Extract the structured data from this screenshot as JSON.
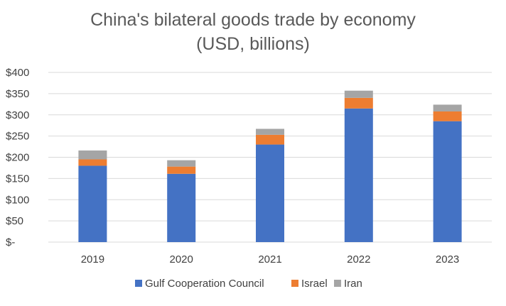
{
  "chart_data": {
    "type": "bar",
    "stacked": true,
    "title": "China's bilateral goods trade by economy",
    "subtitle": "(USD, billions)",
    "categories": [
      "2019",
      "2020",
      "2021",
      "2022",
      "2023"
    ],
    "series": [
      {
        "name": "Gulf Cooperation Council",
        "color": "#4472C4",
        "values": [
          180,
          161,
          230,
          315,
          285
        ]
      },
      {
        "name": "Israel",
        "color": "#ED7D31",
        "values": [
          15,
          17,
          23,
          25,
          23
        ]
      },
      {
        "name": "Iran",
        "color": "#A5A5A5",
        "values": [
          21,
          15,
          14,
          17,
          16
        ]
      }
    ],
    "ylim": [
      0,
      400
    ],
    "yticks": [
      0,
      50,
      100,
      150,
      200,
      250,
      300,
      350,
      400
    ],
    "ytick_labels": [
      "$-",
      "$50",
      "$100",
      "$150",
      "$200",
      "$250",
      "$300",
      "$350",
      "$400"
    ],
    "grid": true,
    "legend_position": "bottom"
  }
}
